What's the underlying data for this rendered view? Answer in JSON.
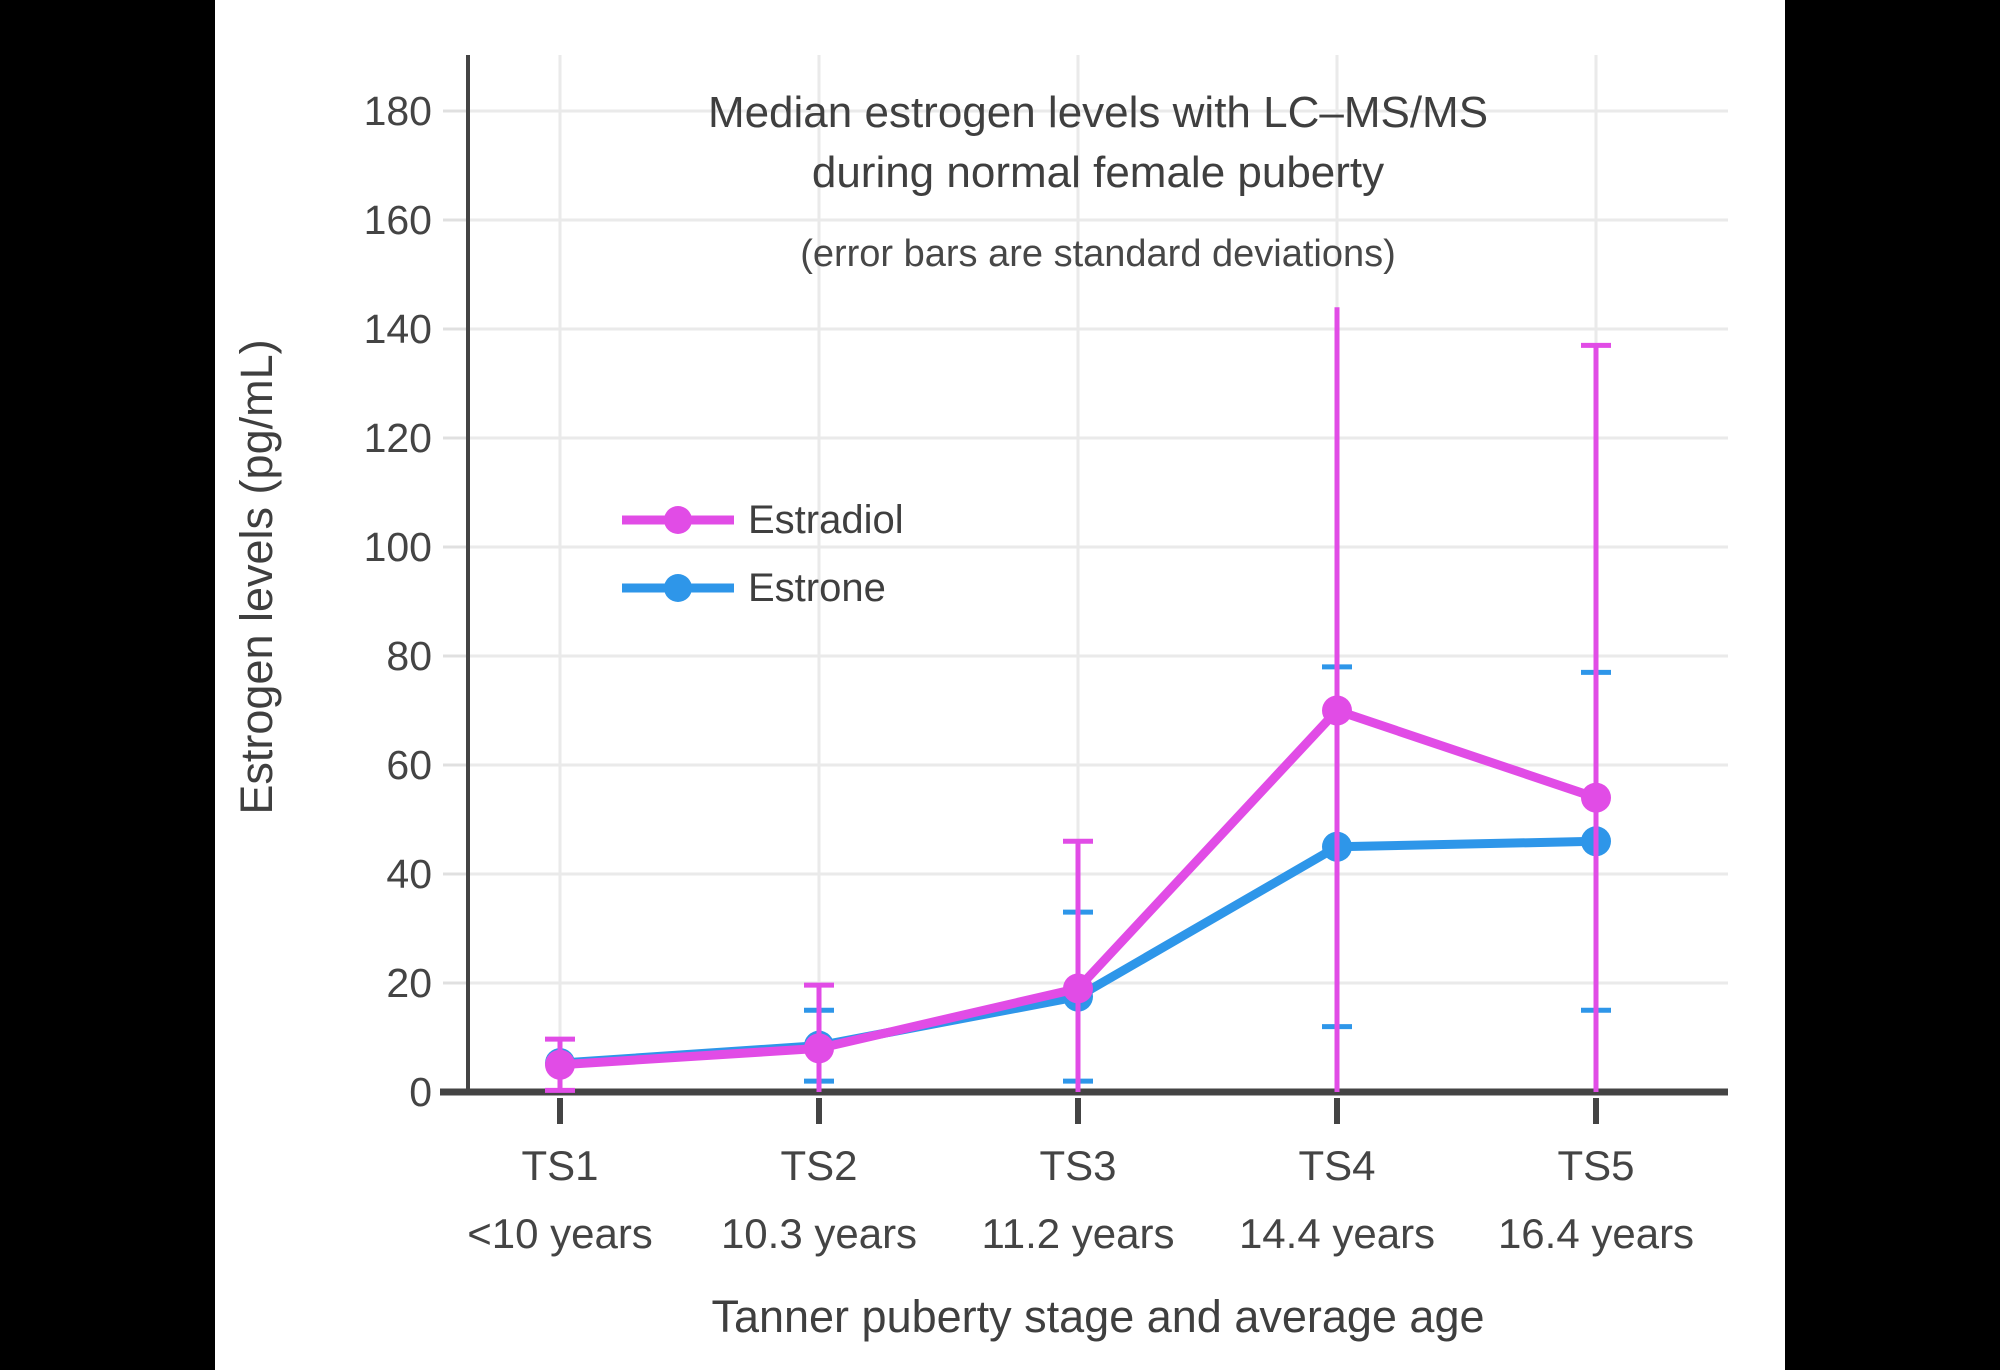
{
  "page": {
    "letterbox_color": "#000000",
    "canvas_color": "#ffffff",
    "axis_color": "#444444",
    "gridline_color": "#eaeaea",
    "ytick_color": "#e0e0e0"
  },
  "chart_data": {
    "type": "line",
    "title_lines": [
      "Median estrogen levels with LC–MS/MS",
      "during normal female puberty"
    ],
    "subtitle": "(error bars are standard deviations)",
    "xlabel": "Tanner puberty stage and average age",
    "ylabel": "Estrogen levels (pg/mL)",
    "categories": [
      "TS1",
      "TS2",
      "TS3",
      "TS4",
      "TS5"
    ],
    "category_ages": [
      "<10 years",
      "10.3 years",
      "11.2 years",
      "14.4 years",
      "16.4 years"
    ],
    "y_axis": {
      "min": 0,
      "max": 180,
      "tick_step": 20,
      "unit": "pg/mL"
    },
    "error_bar_meaning": "standard deviation",
    "series": [
      {
        "name": "Estrone",
        "color": "#2E96E9",
        "values": [
          5.3,
          8.5,
          17.5,
          45,
          46
        ],
        "sd": [
          null,
          6.5,
          15.5,
          33,
          31
        ],
        "upper_caps": [
          false,
          true,
          true,
          true,
          true
        ]
      },
      {
        "name": "Estradiol",
        "color": "#E14CE6",
        "values": [
          5,
          8,
          19,
          70,
          54
        ],
        "sd": [
          4.7,
          11.6,
          27,
          74,
          83
        ],
        "upper_caps": [
          true,
          true,
          true,
          false,
          true
        ]
      }
    ],
    "legend": {
      "position": "inside-upper-left",
      "order": [
        "Estradiol",
        "Estrone"
      ]
    }
  }
}
